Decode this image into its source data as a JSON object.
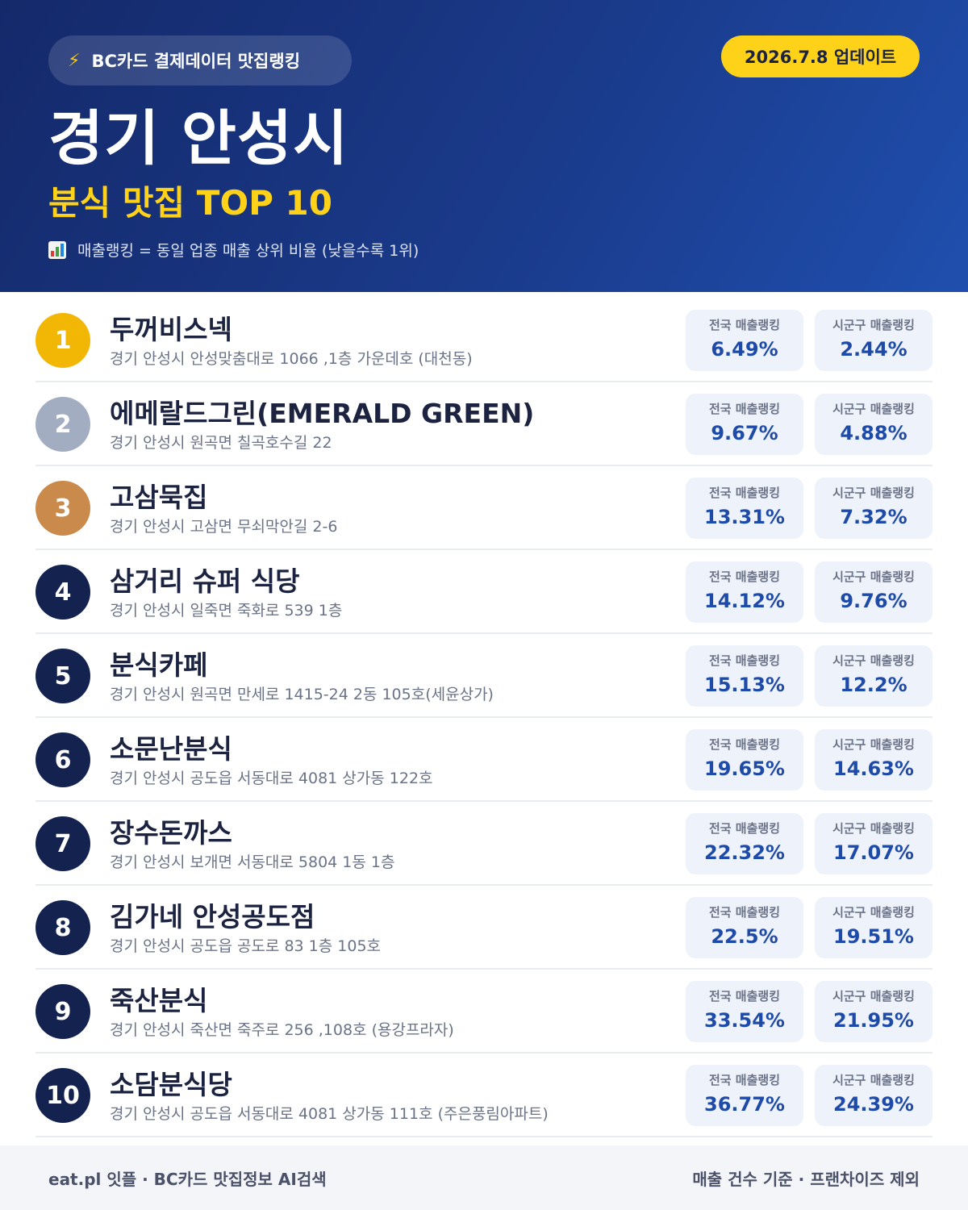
{
  "header": {
    "source_label": "BC카드 결제데이터 맛집랭킹",
    "update_label": "2026.7.8 업데이트",
    "city": "경기 안성시",
    "subtitle": "분식 맛집 TOP 10",
    "note": "매출랭킹 = 동일 업종 매출 상위 비율 (낮을수록 1위)",
    "bolt_icon": "lightning-icon",
    "chart_icon": "bar-chart-icon"
  },
  "stat_labels": {
    "national": "전국 매출랭킹",
    "local": "시군구 매출랭킹"
  },
  "colors": {
    "gold": "#f2b705",
    "silver": "#a3adc2",
    "bronze": "#c98a4b",
    "navy": "#14224f",
    "accent": "#ffd21a",
    "value_blue": "#1f4ba8"
  },
  "restaurants": [
    {
      "rank": "1",
      "name": "두꺼비스넥",
      "address": "경기 안성시 안성맞춤대로 1066 ,1층 가운데호 (대천동)",
      "national": "6.49%",
      "local": "2.44%"
    },
    {
      "rank": "2",
      "name": "에메랄드그린(EMERALD GREEN)",
      "address": "경기 안성시 원곡면 칠곡호수길 22",
      "national": "9.67%",
      "local": "4.88%"
    },
    {
      "rank": "3",
      "name": "고삼묵집",
      "address": "경기 안성시 고삼면 무쇠막안길 2-6",
      "national": "13.31%",
      "local": "7.32%"
    },
    {
      "rank": "4",
      "name": "삼거리 슈퍼 식당",
      "address": "경기 안성시 일죽면 죽화로 539 1층",
      "national": "14.12%",
      "local": "9.76%"
    },
    {
      "rank": "5",
      "name": "분식카페",
      "address": "경기 안성시 원곡면 만세로 1415-24 2동 105호(세윤상가)",
      "national": "15.13%",
      "local": "12.2%"
    },
    {
      "rank": "6",
      "name": "소문난분식",
      "address": "경기 안성시 공도읍 서동대로 4081 상가동 122호",
      "national": "19.65%",
      "local": "14.63%"
    },
    {
      "rank": "7",
      "name": "장수돈까스",
      "address": "경기 안성시 보개면 서동대로 5804 1동 1층",
      "national": "22.32%",
      "local": "17.07%"
    },
    {
      "rank": "8",
      "name": "김가네 안성공도점",
      "address": "경기 안성시 공도읍 공도로 83 1층 105호",
      "national": "22.5%",
      "local": "19.51%"
    },
    {
      "rank": "9",
      "name": "죽산분식",
      "address": "경기 안성시 죽산면 죽주로 256 ,108호 (용강프라자)",
      "national": "33.54%",
      "local": "21.95%"
    },
    {
      "rank": "10",
      "name": "소담분식당",
      "address": "경기 안성시 공도읍 서동대로 4081 상가동 111호 (주은풍림아파트)",
      "national": "36.77%",
      "local": "24.39%"
    }
  ],
  "footer": {
    "left": "eat.pl 잇플 · BC카드 맛집정보 AI검색",
    "right": "매출 건수 기준 · 프랜차이즈 제외"
  }
}
